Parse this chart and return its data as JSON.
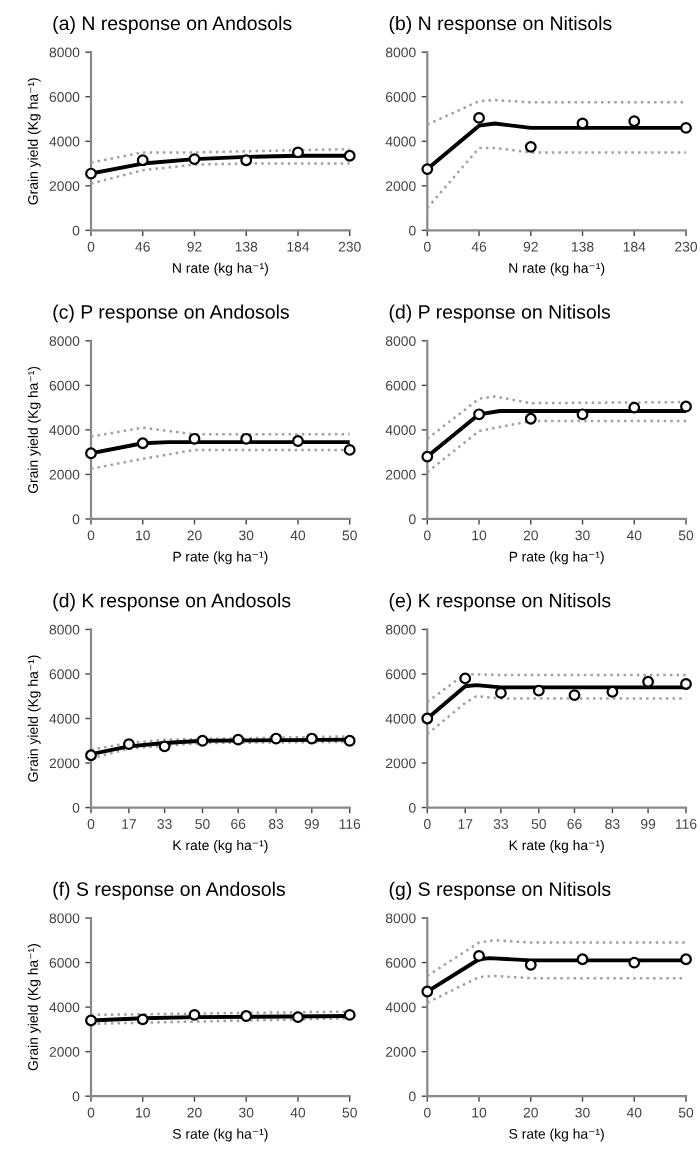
{
  "chart_data": [
    {
      "type": "line",
      "title": "(a) N response on Andosols",
      "xlabel": "N rate (kg ha⁻¹)",
      "ylabel": "Grain yield (Kg ha⁻¹)",
      "xlim": [
        0,
        230
      ],
      "xticks": [
        0,
        46,
        92,
        138,
        184,
        230
      ],
      "ylim": [
        0,
        8000
      ],
      "yticks": [
        0,
        2000,
        4000,
        6000,
        8000
      ],
      "series": [
        {
          "color": "#a0a0a0",
          "line_style": "dotted",
          "x": [
            0,
            46,
            92,
            138,
            230
          ],
          "values": [
            2100,
            2700,
            2950,
            3000,
            3000
          ]
        },
        {
          "color": "#a0a0a0",
          "line_style": "dotted",
          "x": [
            0,
            46,
            92,
            230
          ],
          "values": [
            3050,
            3500,
            3500,
            3650
          ]
        },
        {
          "color": "#000000",
          "line_style": "solid",
          "x": [
            0,
            46,
            92,
            138,
            184,
            230
          ],
          "values": [
            2550,
            3000,
            3200,
            3300,
            3350,
            3350
          ]
        },
        {
          "type": "scatter",
          "color": "#000000",
          "marker": "circle",
          "x": [
            0,
            46,
            92,
            138,
            184,
            230
          ],
          "values": [
            2550,
            3150,
            3200,
            3150,
            3500,
            3350
          ]
        }
      ]
    },
    {
      "type": "line",
      "title": "(b) N response on Nitisols",
      "xlabel": "N rate (kg ha⁻¹)",
      "xlim": [
        0,
        230
      ],
      "xticks": [
        0,
        46,
        92,
        138,
        184,
        230
      ],
      "ylim": [
        0,
        8000
      ],
      "yticks": [
        0,
        2000,
        4000,
        6000,
        8000
      ],
      "series": [
        {
          "color": "#a0a0a0",
          "line_style": "dotted",
          "x": [
            0,
            46,
            60,
            92,
            230
          ],
          "values": [
            1000,
            3700,
            3700,
            3500,
            3500
          ]
        },
        {
          "color": "#a0a0a0",
          "line_style": "dotted",
          "x": [
            0,
            46,
            60,
            92,
            230
          ],
          "values": [
            4750,
            5800,
            5850,
            5750,
            5750
          ]
        },
        {
          "color": "#000000",
          "line_style": "solid",
          "x": [
            0,
            46,
            60,
            92,
            230
          ],
          "values": [
            2750,
            4700,
            4800,
            4600,
            4600
          ]
        },
        {
          "type": "scatter",
          "color": "#000000",
          "marker": "circle",
          "x": [
            0,
            46,
            92,
            138,
            184,
            230
          ],
          "values": [
            2750,
            5050,
            3750,
            4800,
            4900,
            4600
          ]
        }
      ]
    },
    {
      "type": "line",
      "title": "(c) P response on Andosols",
      "xlabel": "P rate (kg ha⁻¹)",
      "ylabel": "Grain yield (Kg ha⁻¹)",
      "xlim": [
        0,
        50
      ],
      "xticks": [
        0,
        10,
        20,
        30,
        40,
        50
      ],
      "ylim": [
        0,
        8000
      ],
      "yticks": [
        0,
        2000,
        4000,
        6000,
        8000
      ],
      "series": [
        {
          "color": "#a0a0a0",
          "line_style": "dotted",
          "x": [
            0,
            10,
            20,
            50
          ],
          "values": [
            2250,
            2700,
            3100,
            3100
          ]
        },
        {
          "color": "#a0a0a0",
          "line_style": "dotted",
          "x": [
            0,
            10,
            20,
            50
          ],
          "values": [
            3700,
            4100,
            3800,
            3800
          ]
        },
        {
          "color": "#000000",
          "line_style": "solid",
          "x": [
            0,
            10,
            15,
            50
          ],
          "values": [
            2950,
            3400,
            3450,
            3450
          ]
        },
        {
          "type": "scatter",
          "color": "#000000",
          "marker": "circle",
          "x": [
            0,
            10,
            20,
            30,
            40,
            50
          ],
          "values": [
            2950,
            3400,
            3600,
            3600,
            3500,
            3100
          ]
        }
      ]
    },
    {
      "type": "line",
      "title": "(d) P response on Nitisols",
      "xlabel": "P rate (kg ha⁻¹)",
      "xlim": [
        0,
        50
      ],
      "xticks": [
        0,
        10,
        20,
        30,
        40,
        50
      ],
      "ylim": [
        0,
        8000
      ],
      "yticks": [
        0,
        2000,
        4000,
        6000,
        8000
      ],
      "series": [
        {
          "color": "#a0a0a0",
          "line_style": "dotted",
          "x": [
            0,
            10,
            20,
            50
          ],
          "values": [
            2100,
            3950,
            4400,
            4400
          ]
        },
        {
          "color": "#a0a0a0",
          "line_style": "dotted",
          "x": [
            0,
            10,
            13,
            20,
            50
          ],
          "values": [
            3600,
            5400,
            5500,
            5200,
            5250
          ]
        },
        {
          "color": "#000000",
          "line_style": "solid",
          "x": [
            0,
            10,
            14,
            50
          ],
          "values": [
            2800,
            4700,
            4850,
            4850
          ]
        },
        {
          "type": "scatter",
          "color": "#000000",
          "marker": "circle",
          "x": [
            0,
            10,
            20,
            30,
            40,
            50
          ],
          "values": [
            2800,
            4700,
            4500,
            4700,
            5000,
            5050
          ]
        }
      ]
    },
    {
      "type": "line",
      "title": "(d) K response on Andosols",
      "xlabel": "K rate (kg ha⁻¹)",
      "ylabel": "Grain yield (Kg ha⁻¹)",
      "xlim": [
        0,
        116
      ],
      "xticks": [
        0,
        17,
        33,
        50,
        66,
        83,
        99,
        116
      ],
      "ylim": [
        0,
        8000
      ],
      "yticks": [
        0,
        2000,
        4000,
        6000,
        8000
      ],
      "series": [
        {
          "color": "#a0a0a0",
          "line_style": "dotted",
          "x": [
            0,
            17,
            50,
            116
          ],
          "values": [
            2200,
            2650,
            2900,
            2950
          ]
        },
        {
          "color": "#a0a0a0",
          "line_style": "dotted",
          "x": [
            0,
            17,
            33,
            116
          ],
          "values": [
            2600,
            2900,
            3050,
            3200
          ]
        },
        {
          "color": "#000000",
          "line_style": "solid",
          "x": [
            0,
            17,
            33,
            50,
            116
          ],
          "values": [
            2400,
            2750,
            2900,
            3000,
            3050
          ]
        },
        {
          "type": "scatter",
          "color": "#000000",
          "marker": "circle",
          "x": [
            0,
            17,
            33,
            50,
            66,
            83,
            99,
            116
          ],
          "values": [
            2350,
            2850,
            2750,
            3000,
            3050,
            3100,
            3100,
            3000
          ]
        }
      ]
    },
    {
      "type": "line",
      "title": "(e) K response on Nitisols",
      "xlabel": "K rate (kg ha⁻¹)",
      "xlim": [
        0,
        116
      ],
      "xticks": [
        0,
        17,
        33,
        50,
        66,
        83,
        99,
        116
      ],
      "ylim": [
        0,
        8000
      ],
      "yticks": [
        0,
        2000,
        4000,
        6000,
        8000
      ],
      "series": [
        {
          "color": "#a0a0a0",
          "line_style": "dotted",
          "x": [
            0,
            17,
            22,
            33,
            116
          ],
          "values": [
            3300,
            4700,
            5000,
            4900,
            4900
          ]
        },
        {
          "color": "#a0a0a0",
          "line_style": "dotted",
          "x": [
            0,
            17,
            33,
            116
          ],
          "values": [
            4750,
            6000,
            5950,
            5950
          ]
        },
        {
          "color": "#000000",
          "line_style": "solid",
          "x": [
            0,
            17,
            22,
            33,
            116
          ],
          "values": [
            4000,
            5450,
            5500,
            5400,
            5400
          ]
        },
        {
          "type": "scatter",
          "color": "#000000",
          "marker": "circle",
          "x": [
            0,
            17,
            33,
            50,
            66,
            83,
            99,
            116
          ],
          "values": [
            4000,
            5800,
            5150,
            5250,
            5050,
            5200,
            5650,
            5550
          ]
        }
      ]
    },
    {
      "type": "line",
      "title": "(f) S response on Andosols",
      "xlabel": "S rate (kg ha⁻¹)",
      "ylabel": "Grain yield (Kg ha⁻¹)",
      "xlim": [
        0,
        50
      ],
      "xticks": [
        0,
        10,
        20,
        30,
        40,
        50
      ],
      "ylim": [
        0,
        8000
      ],
      "yticks": [
        0,
        2000,
        4000,
        6000,
        8000
      ],
      "series": [
        {
          "color": "#a0a0a0",
          "line_style": "dotted",
          "x": [
            0,
            50
          ],
          "values": [
            3250,
            3500
          ]
        },
        {
          "color": "#a0a0a0",
          "line_style": "dotted",
          "x": [
            0,
            50
          ],
          "values": [
            3650,
            3800
          ]
        },
        {
          "color": "#000000",
          "line_style": "solid",
          "x": [
            0,
            10,
            20,
            50
          ],
          "values": [
            3400,
            3500,
            3550,
            3600
          ]
        },
        {
          "type": "scatter",
          "color": "#000000",
          "marker": "circle",
          "x": [
            0,
            10,
            20,
            30,
            40,
            50
          ],
          "values": [
            3400,
            3450,
            3650,
            3600,
            3550,
            3650
          ]
        }
      ]
    },
    {
      "type": "line",
      "title": "(g) S response on Nitisols",
      "xlabel": "S rate (kg ha⁻¹)",
      "xlim": [
        0,
        50
      ],
      "xticks": [
        0,
        10,
        20,
        30,
        40,
        50
      ],
      "ylim": [
        0,
        8000
      ],
      "yticks": [
        0,
        2000,
        4000,
        6000,
        8000
      ],
      "series": [
        {
          "color": "#a0a0a0",
          "line_style": "dotted",
          "x": [
            0,
            10,
            13,
            20,
            50
          ],
          "values": [
            4200,
            5350,
            5400,
            5300,
            5300
          ]
        },
        {
          "color": "#a0a0a0",
          "line_style": "dotted",
          "x": [
            0,
            10,
            13,
            20,
            50
          ],
          "values": [
            5400,
            6900,
            7000,
            6900,
            6900
          ]
        },
        {
          "color": "#000000",
          "line_style": "solid",
          "x": [
            0,
            10,
            12,
            20,
            50
          ],
          "values": [
            4700,
            6150,
            6200,
            6100,
            6100
          ]
        },
        {
          "type": "scatter",
          "color": "#000000",
          "marker": "circle",
          "x": [
            0,
            10,
            20,
            30,
            40,
            50
          ],
          "values": [
            4700,
            6300,
            5900,
            6150,
            6000,
            6150
          ]
        }
      ]
    }
  ]
}
